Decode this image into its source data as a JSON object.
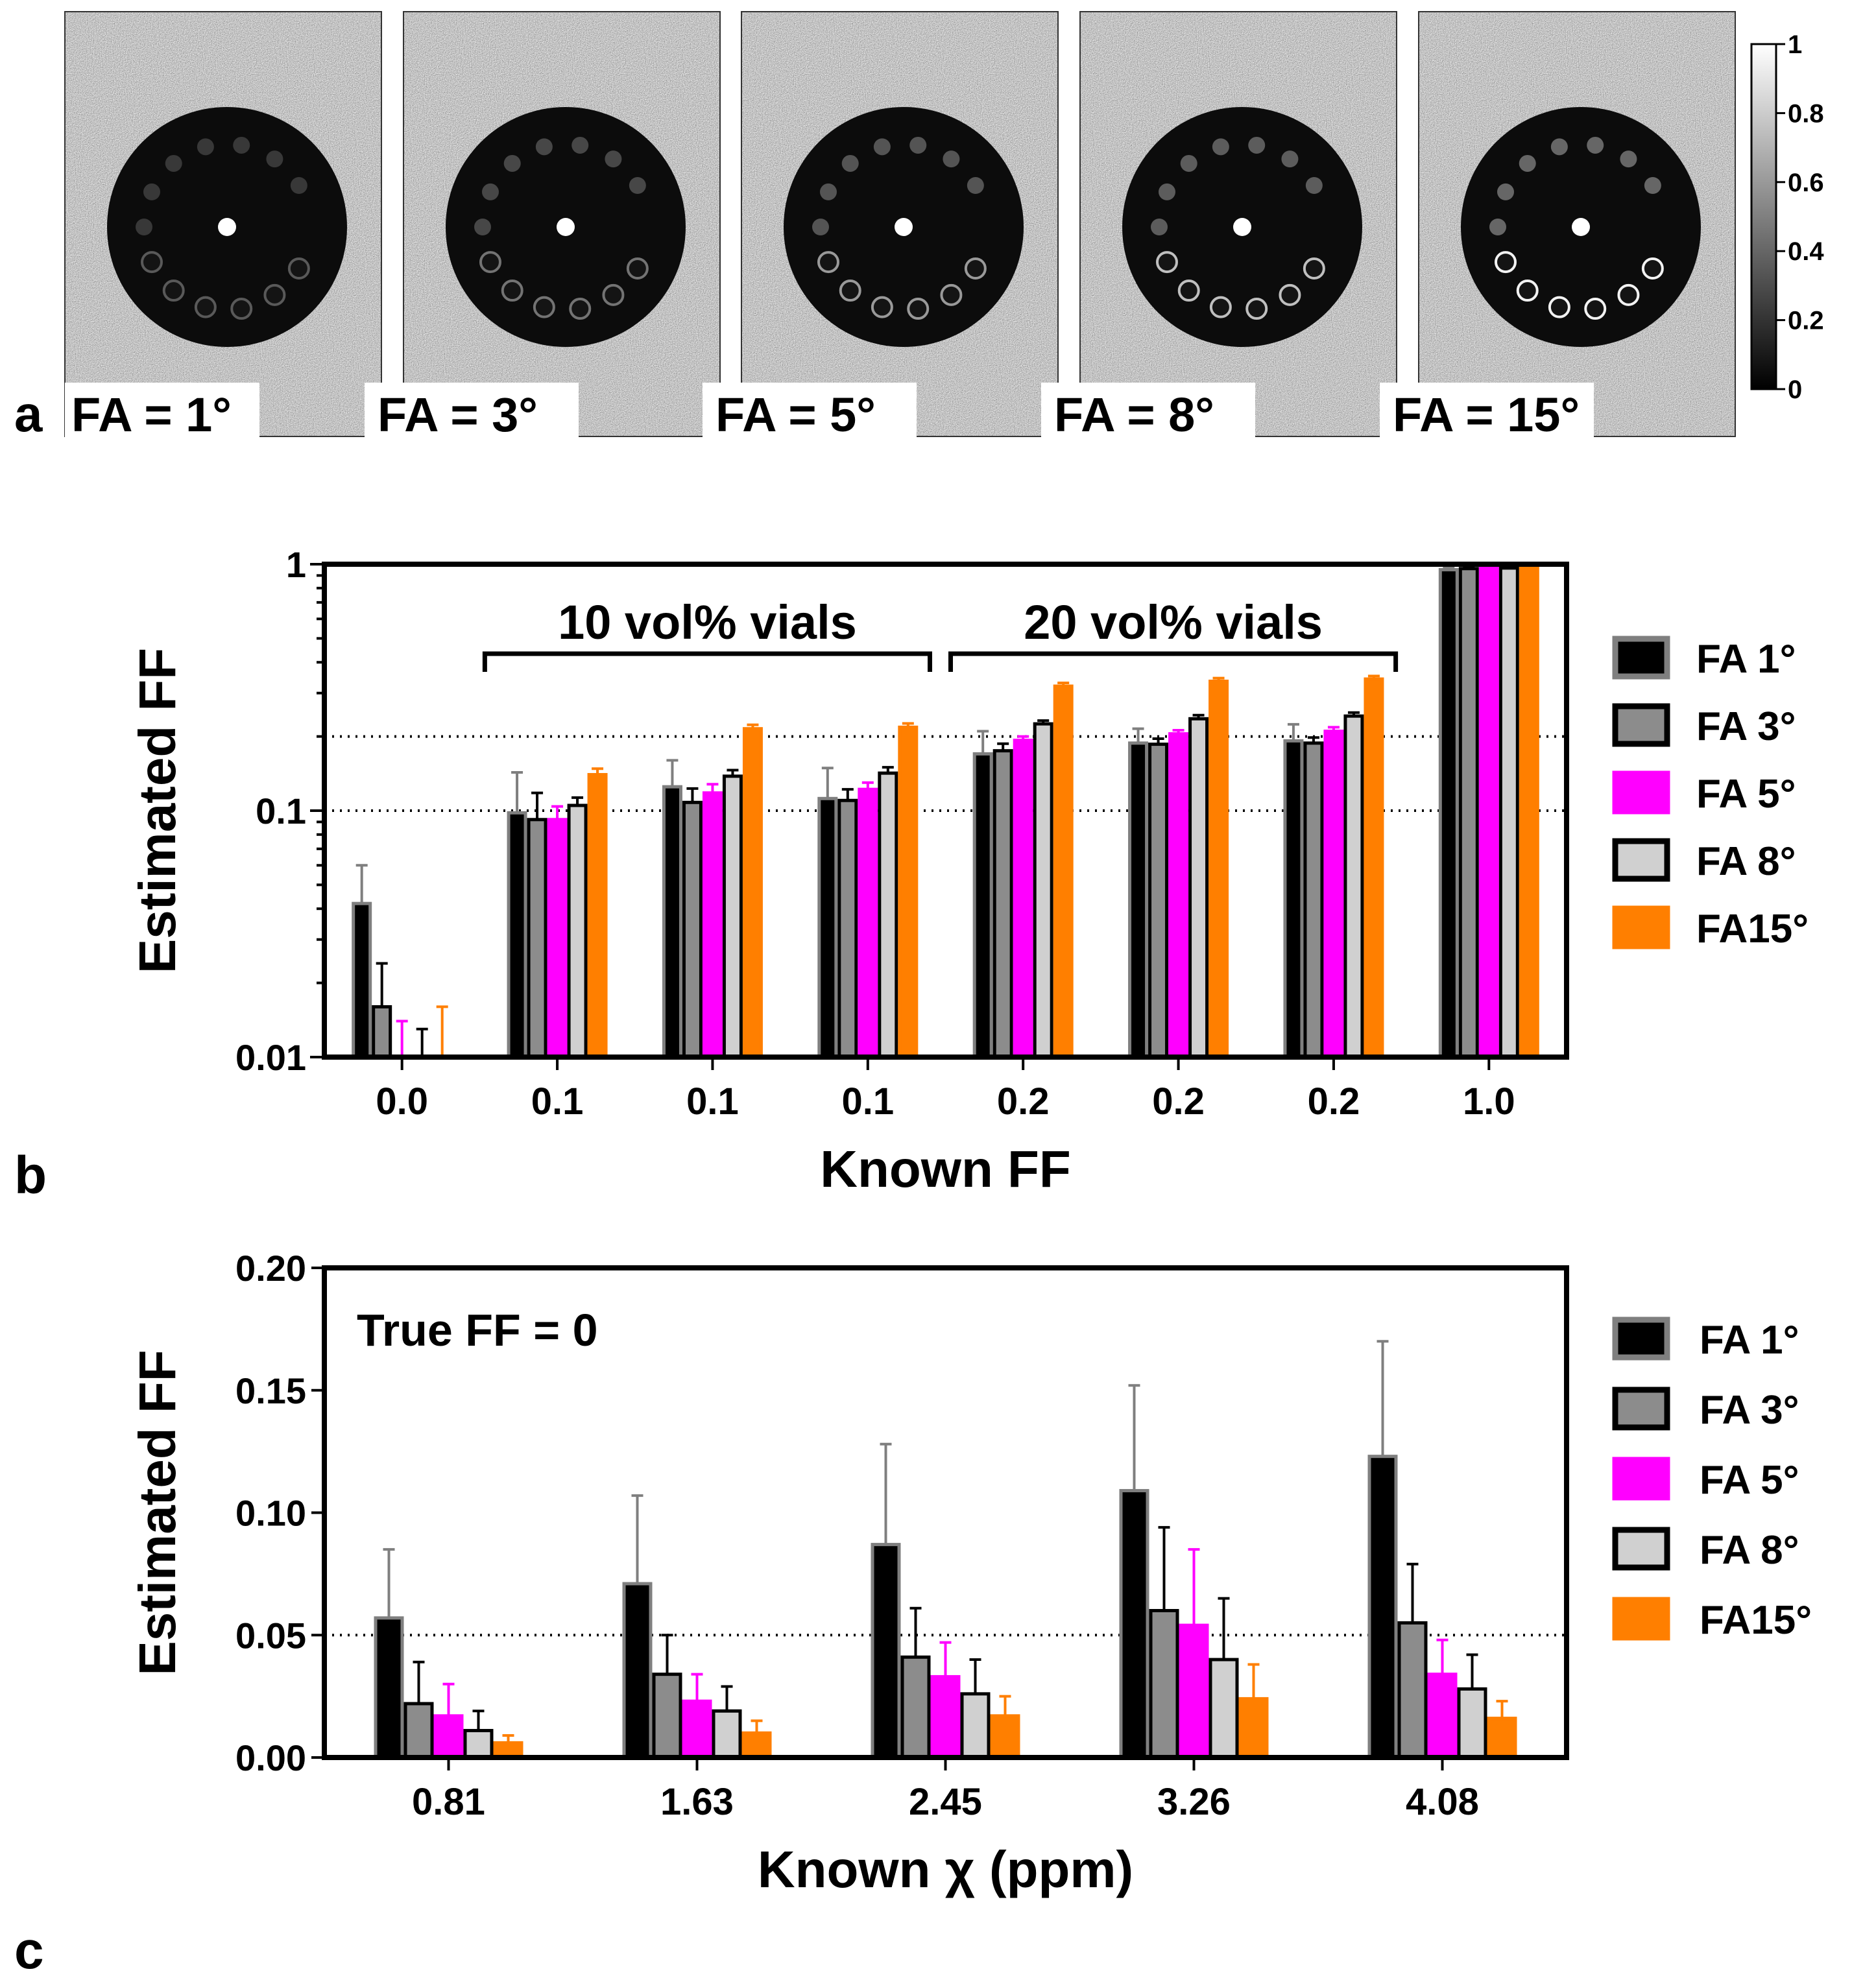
{
  "panel_a": {
    "letter": "a",
    "images": [
      {
        "label": "FA = 1°",
        "ring_brightness": 0.35,
        "vial_brightness": 0.22,
        "center_brightness": 1.0
      },
      {
        "label": "FA = 3°",
        "ring_brightness": 0.45,
        "vial_brightness": 0.28,
        "center_brightness": 1.0
      },
      {
        "label": "FA = 5°",
        "ring_brightness": 0.6,
        "vial_brightness": 0.33,
        "center_brightness": 1.0
      },
      {
        "label": "FA = 8°",
        "ring_brightness": 0.75,
        "vial_brightness": 0.36,
        "center_brightness": 1.0
      },
      {
        "label": "FA = 15°",
        "ring_brightness": 0.95,
        "vial_brightness": 0.4,
        "center_brightness": 1.0
      }
    ],
    "colorbar": {
      "ticks": [
        "1",
        "0.8",
        "0.6",
        "0.4",
        "0.2",
        "0"
      ],
      "min": 0,
      "max": 1
    }
  },
  "chart_data": [
    {
      "id": "b",
      "panel_letter": "b",
      "type": "bar",
      "scale": "log",
      "title": "",
      "xlabel": "Known FF",
      "ylabel": "Estimated FF",
      "ylim": [
        0.01,
        1
      ],
      "yticks": [
        "0.01",
        "0.1",
        "1"
      ],
      "categories": [
        "0.0",
        "0.1",
        "0.1",
        "0.1",
        "0.2",
        "0.2",
        "0.2",
        "1.0"
      ],
      "reference_lines": [
        0.1,
        0.2,
        1.0
      ],
      "groups_annotations": [
        {
          "label": "10 vol% vials",
          "from_category": 1,
          "to_category": 3
        },
        {
          "label": "20 vol% vials",
          "from_category": 4,
          "to_category": 6
        }
      ],
      "series": [
        {
          "name": "FA 1°",
          "fill": "#000000",
          "stroke": "#7f7f7f",
          "values": [
            0.042,
            0.098,
            0.125,
            0.112,
            0.17,
            0.188,
            0.192,
            0.95
          ],
          "errors": [
            0.018,
            0.045,
            0.035,
            0.037,
            0.04,
            0.027,
            0.032,
            0.02
          ]
        },
        {
          "name": "FA 3°",
          "fill": "#8c8c8c",
          "stroke": "#000000",
          "values": [
            0.016,
            0.092,
            0.108,
            0.11,
            0.175,
            0.186,
            0.188,
            0.96
          ],
          "errors": [
            0.008,
            0.026,
            0.015,
            0.012,
            0.012,
            0.01,
            0.01,
            0.02
          ]
        },
        {
          "name": "FA 5°",
          "fill": "#ff00ff",
          "stroke": "#ff00ff",
          "values": [
            0.0,
            0.092,
            0.118,
            0.122,
            0.193,
            0.205,
            0.21,
            0.97
          ],
          "errors": [
            0.014,
            0.012,
            0.01,
            0.008,
            0.007,
            0.007,
            0.008,
            0.015
          ]
        },
        {
          "name": "FA 8°",
          "fill": "#d0d0d0",
          "stroke": "#000000",
          "values": [
            0.0,
            0.105,
            0.138,
            0.142,
            0.225,
            0.236,
            0.242,
            0.965
          ],
          "errors": [
            0.013,
            0.008,
            0.008,
            0.008,
            0.007,
            0.008,
            0.008,
            0.015
          ]
        },
        {
          "name": "FA15°",
          "fill": "#ff7f00",
          "stroke": "#ff7f00",
          "values": [
            0.0,
            0.14,
            0.215,
            0.218,
            0.32,
            0.335,
            0.342,
            0.97
          ],
          "errors": [
            0.016,
            0.008,
            0.008,
            0.008,
            0.01,
            0.01,
            0.01,
            0.015
          ]
        }
      ]
    },
    {
      "id": "c",
      "panel_letter": "c",
      "type": "bar",
      "scale": "linear",
      "title": "",
      "annotation": "True FF = 0",
      "xlabel": "Known χ (ppm)",
      "ylabel": "Estimated FF",
      "ylim": [
        0,
        0.2
      ],
      "yticks": [
        "0.00",
        "0.05",
        "0.10",
        "0.15",
        "0.20"
      ],
      "categories": [
        "0.81",
        "1.63",
        "2.45",
        "3.26",
        "4.08"
      ],
      "reference_lines": [
        0.05
      ],
      "series": [
        {
          "name": "FA 1°",
          "fill": "#000000",
          "stroke": "#7f7f7f",
          "values": [
            0.057,
            0.071,
            0.087,
            0.109,
            0.123
          ],
          "errors": [
            0.028,
            0.036,
            0.041,
            0.043,
            0.047
          ]
        },
        {
          "name": "FA 3°",
          "fill": "#8c8c8c",
          "stroke": "#000000",
          "values": [
            0.022,
            0.034,
            0.041,
            0.06,
            0.055
          ],
          "errors": [
            0.017,
            0.016,
            0.02,
            0.034,
            0.024
          ]
        },
        {
          "name": "FA 5°",
          "fill": "#ff00ff",
          "stroke": "#ff00ff",
          "values": [
            0.017,
            0.023,
            0.033,
            0.054,
            0.034
          ],
          "errors": [
            0.013,
            0.011,
            0.014,
            0.031,
            0.014
          ]
        },
        {
          "name": "FA 8°",
          "fill": "#d0d0d0",
          "stroke": "#000000",
          "values": [
            0.011,
            0.019,
            0.026,
            0.04,
            0.028
          ],
          "errors": [
            0.008,
            0.01,
            0.014,
            0.025,
            0.014
          ]
        },
        {
          "name": "FA15°",
          "fill": "#ff7f00",
          "stroke": "#ff7f00",
          "values": [
            0.006,
            0.01,
            0.017,
            0.024,
            0.016
          ],
          "errors": [
            0.003,
            0.005,
            0.008,
            0.014,
            0.007
          ]
        }
      ]
    }
  ]
}
